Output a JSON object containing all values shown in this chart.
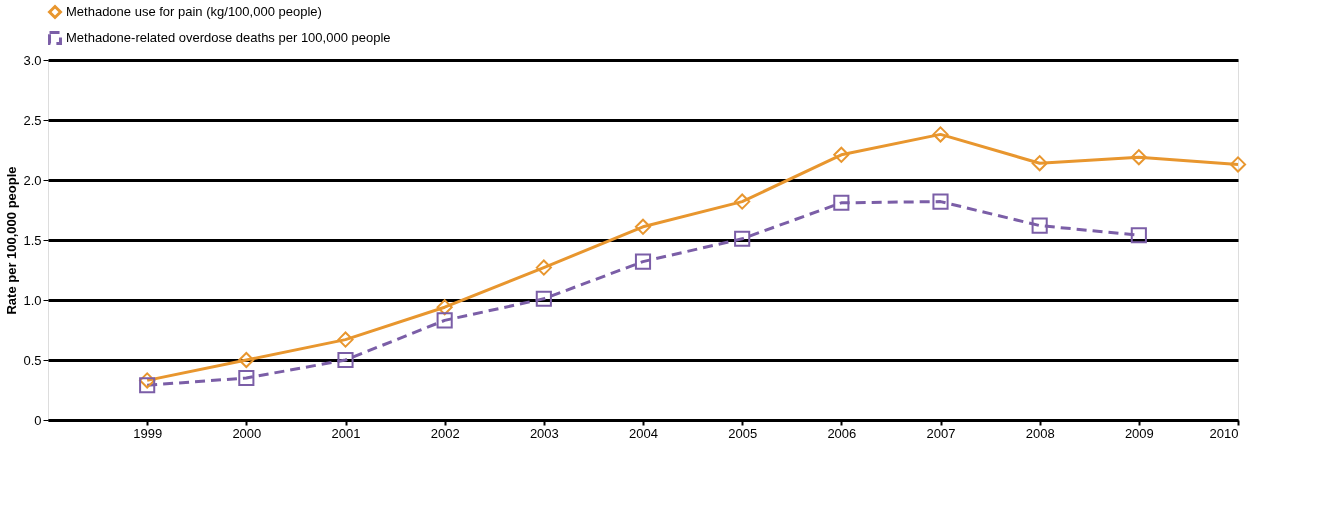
{
  "chart_data": {
    "type": "line",
    "ylabel": "Rate per 100,000 people",
    "x": [
      1999,
      2000,
      2001,
      2002,
      2003,
      2004,
      2005,
      2006,
      2007,
      2008,
      2009,
      2010
    ],
    "xlim": [
      1998,
      2010
    ],
    "xticks": [
      1999,
      2000,
      2001,
      2002,
      2003,
      2004,
      2005,
      2006,
      2007,
      2008,
      2009,
      2010
    ],
    "ylim": [
      0,
      3
    ],
    "yticks": [
      0,
      0.5,
      {
        "value": 1,
        "label": "1.0"
      },
      1.5,
      {
        "value": 2,
        "label": "2.0"
      },
      2.5,
      {
        "value": 3,
        "label": "3.0"
      }
    ],
    "grid": "y",
    "legend": "top left",
    "series": [
      {
        "name": "Methadone use for pain (kg/100,000 people)",
        "color": "#e8962e",
        "marker": "diamond",
        "line_style": "solid",
        "values": [
          0.33,
          0.5,
          0.67,
          0.94,
          1.27,
          1.61,
          1.82,
          2.21,
          2.38,
          2.14,
          2.19,
          2.13
        ]
      },
      {
        "name": "Methadone-related overdose deaths per 100,000 people",
        "color": "#7b5ea7",
        "marker": "square",
        "line_style": "dashed",
        "values": [
          0.29,
          0.35,
          0.5,
          0.83,
          1.01,
          1.32,
          1.51,
          1.81,
          1.82,
          1.62,
          1.54,
          null
        ]
      }
    ]
  }
}
